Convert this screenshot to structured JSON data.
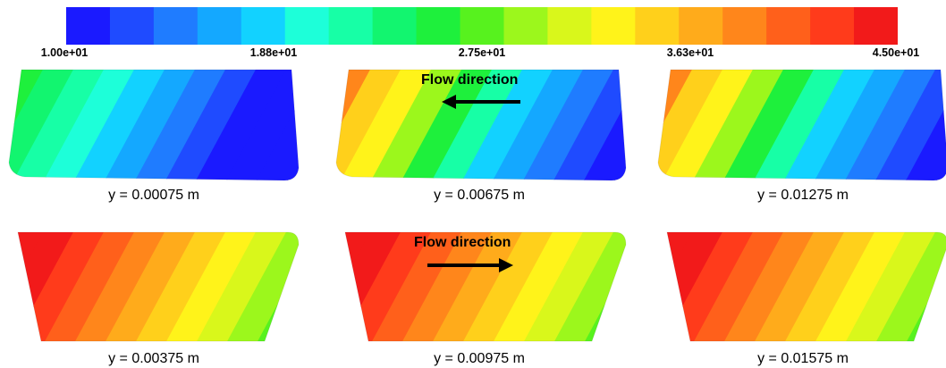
{
  "colorbar": {
    "ticks": [
      "1.00e+01",
      "1.88e+01",
      "2.75e+01",
      "3.63e+01",
      "4.50e+01"
    ],
    "colors": [
      "#1a1aff",
      "#1f4bff",
      "#1f7cff",
      "#14a8ff",
      "#12d2ff",
      "#1dffd9",
      "#17ffa6",
      "#12f56f",
      "#1ef03c",
      "#57f21e",
      "#9cf71c",
      "#d9f71b",
      "#fff31a",
      "#ffd01b",
      "#ffab1b",
      "#ff861b",
      "#ff601b",
      "#ff3b1b",
      "#f21a1a"
    ]
  },
  "panels": [
    {
      "id": "p1",
      "caption": "y = 0.00075 m",
      "shape": "narrow-bottom",
      "scheme": "cool",
      "flow_label": "",
      "flow_dir": ""
    },
    {
      "id": "p2",
      "caption": "y = 0.00675 m",
      "shape": "narrow-bottom",
      "scheme": "cool-warm-edge",
      "flow_label": "Flow direction",
      "flow_dir": "left"
    },
    {
      "id": "p3",
      "caption": "y = 0.01275 m",
      "shape": "narrow-bottom",
      "scheme": "cool-warm-edge",
      "flow_label": "",
      "flow_dir": ""
    },
    {
      "id": "p4",
      "caption": "y = 0.00375 m",
      "shape": "narrow-top",
      "scheme": "warm",
      "flow_label": "",
      "flow_dir": ""
    },
    {
      "id": "p5",
      "caption": "y = 0.00975 m",
      "shape": "narrow-top",
      "scheme": "warm",
      "flow_label": "Flow direction",
      "flow_dir": "right"
    },
    {
      "id": "p6",
      "caption": "y = 0.01575 m",
      "shape": "narrow-top",
      "scheme": "warm",
      "flow_label": "",
      "flow_dir": ""
    }
  ]
}
